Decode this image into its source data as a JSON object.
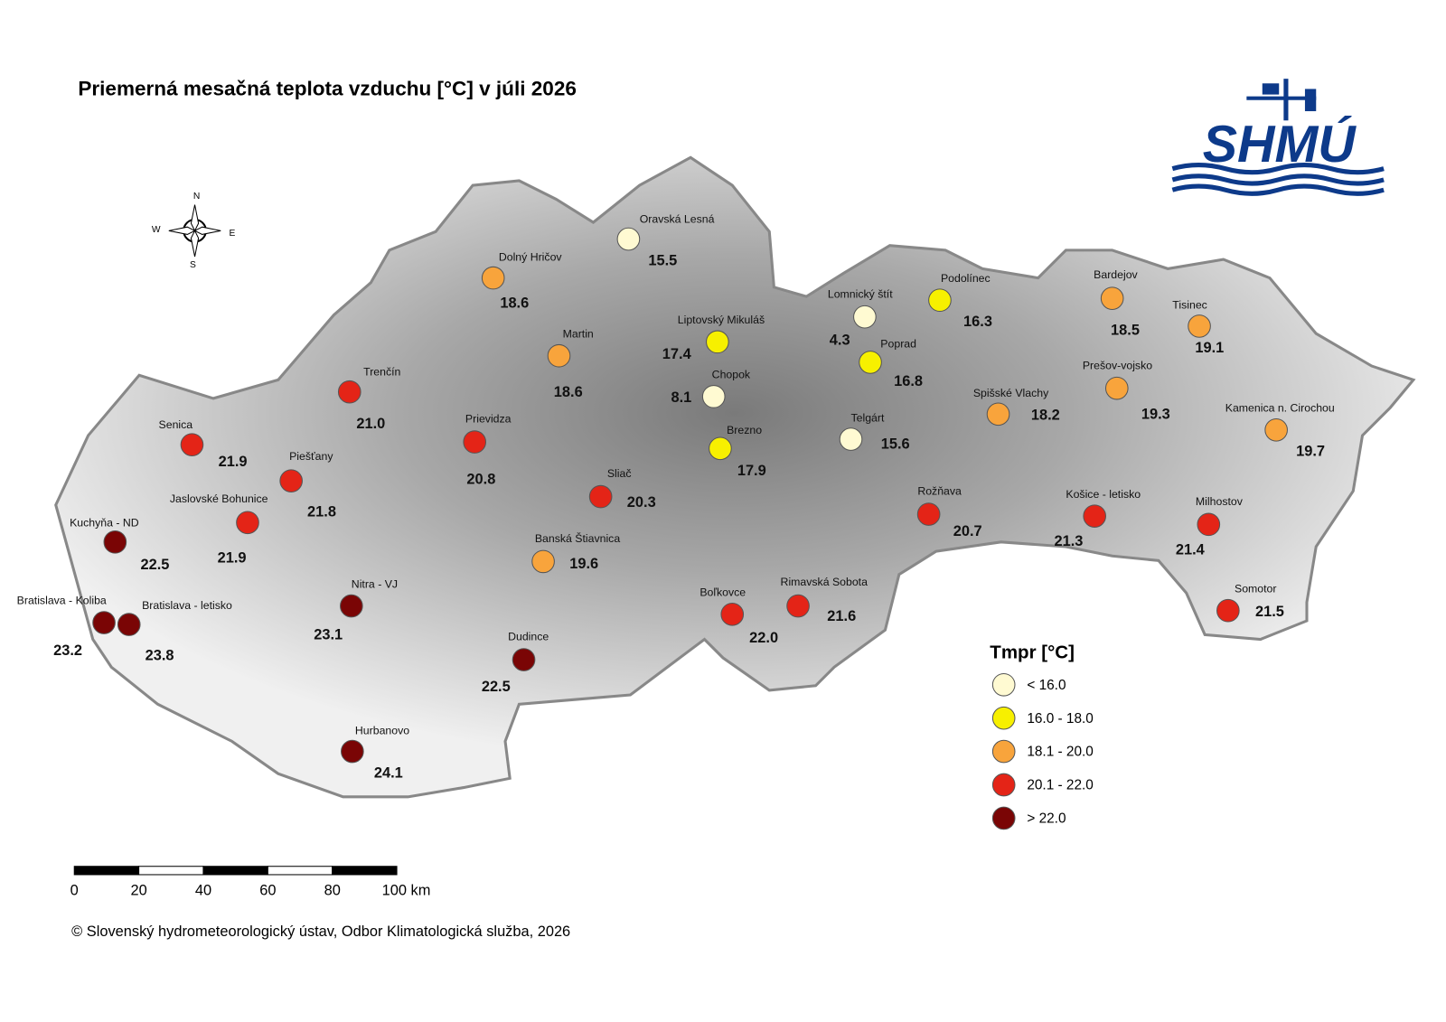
{
  "title": "Priemerná mesačná teplota vzduchu [°C] v júli 2026",
  "logo": "SHMÚ",
  "compass": {
    "n": "N",
    "e": "E",
    "s": "S",
    "w": "W"
  },
  "stations": [
    {
      "name": "Oravská Lesná",
      "value": "15.5",
      "color": "#fffad2"
    },
    {
      "name": "Dolný Hričov",
      "value": "18.6",
      "color": "#f8a43c"
    },
    {
      "name": "Martin",
      "value": "18.6",
      "color": "#f8a43c"
    },
    {
      "name": "Liptovský Mikuláš",
      "value": "17.4",
      "color": "#f7f000"
    },
    {
      "name": "Lomnický štít",
      "value": "4.3",
      "color": "#fffad2"
    },
    {
      "name": "Podolínec",
      "value": "16.3",
      "color": "#f7f000"
    },
    {
      "name": "Poprad",
      "value": "16.8",
      "color": "#f7f000"
    },
    {
      "name": "Chopok",
      "value": "8.1",
      "color": "#fffad2"
    },
    {
      "name": "Telgárt",
      "value": "15.6",
      "color": "#fffad2"
    },
    {
      "name": "Brezno",
      "value": "17.9",
      "color": "#f7f000"
    },
    {
      "name": "Bardejov",
      "value": "18.5",
      "color": "#f8a43c"
    },
    {
      "name": "Tisinec",
      "value": "19.1",
      "color": "#f8a43c"
    },
    {
      "name": "Prešov-vojsko",
      "value": "19.3",
      "color": "#f8a43c"
    },
    {
      "name": "Spišské Vlachy",
      "value": "18.2",
      "color": "#f8a43c"
    },
    {
      "name": "Kamenica n. Cirochou",
      "value": "19.7",
      "color": "#f8a43c"
    },
    {
      "name": "Košice - letisko",
      "value": "21.3",
      "color": "#e42417"
    },
    {
      "name": "Milhostov",
      "value": "21.4",
      "color": "#e42417"
    },
    {
      "name": "Somotor",
      "value": "21.5",
      "color": "#e42417"
    },
    {
      "name": "Rožňava",
      "value": "20.7",
      "color": "#e42417"
    },
    {
      "name": "Rimavská Sobota",
      "value": "21.6",
      "color": "#e42417"
    },
    {
      "name": "Boľkovce",
      "value": "22.0",
      "color": "#e42417"
    },
    {
      "name": "Sliač",
      "value": "20.3",
      "color": "#e42417"
    },
    {
      "name": "Banská Štiavnica",
      "value": "19.6",
      "color": "#f8a43c"
    },
    {
      "name": "Dudince",
      "value": "22.5",
      "color": "#7a0505"
    },
    {
      "name": "Prievidza",
      "value": "20.8",
      "color": "#e42417"
    },
    {
      "name": "Trenčín",
      "value": "21.0",
      "color": "#e42417"
    },
    {
      "name": "Senica",
      "value": "21.9",
      "color": "#e42417"
    },
    {
      "name": "Piešťany",
      "value": "21.8",
      "color": "#e42417"
    },
    {
      "name": "Jaslovské Bohunice",
      "value": "21.9",
      "color": "#e42417"
    },
    {
      "name": "Kuchyňa - ND",
      "value": "22.5",
      "color": "#7a0505"
    },
    {
      "name": "Nitra - VJ",
      "value": "23.1",
      "color": "#7a0505"
    },
    {
      "name": "Bratislava - Koliba",
      "value": "23.2",
      "color": "#7a0505"
    },
    {
      "name": "Bratislava - letisko",
      "value": "23.8",
      "color": "#7a0505"
    },
    {
      "name": "Hurbanovo",
      "value": "24.1",
      "color": "#7a0505"
    }
  ],
  "legend": {
    "title": "Tmpr [°C]",
    "items": [
      {
        "label": "< 16.0",
        "color": "#fffad2"
      },
      {
        "label": "16.0 - 18.0",
        "color": "#f7f000"
      },
      {
        "label": "18.1 - 20.0",
        "color": "#f8a43c"
      },
      {
        "label": "20.1 - 22.0",
        "color": "#e42417"
      },
      {
        "label": "> 22.0",
        "color": "#7a0505"
      }
    ]
  },
  "scale_bar": {
    "labels": [
      "0",
      "20",
      "40",
      "60",
      "80",
      "100 km"
    ]
  },
  "copyright": "© Slovenský hydrometeorologický ústav, Odbor Klimatologická služba, 2026"
}
